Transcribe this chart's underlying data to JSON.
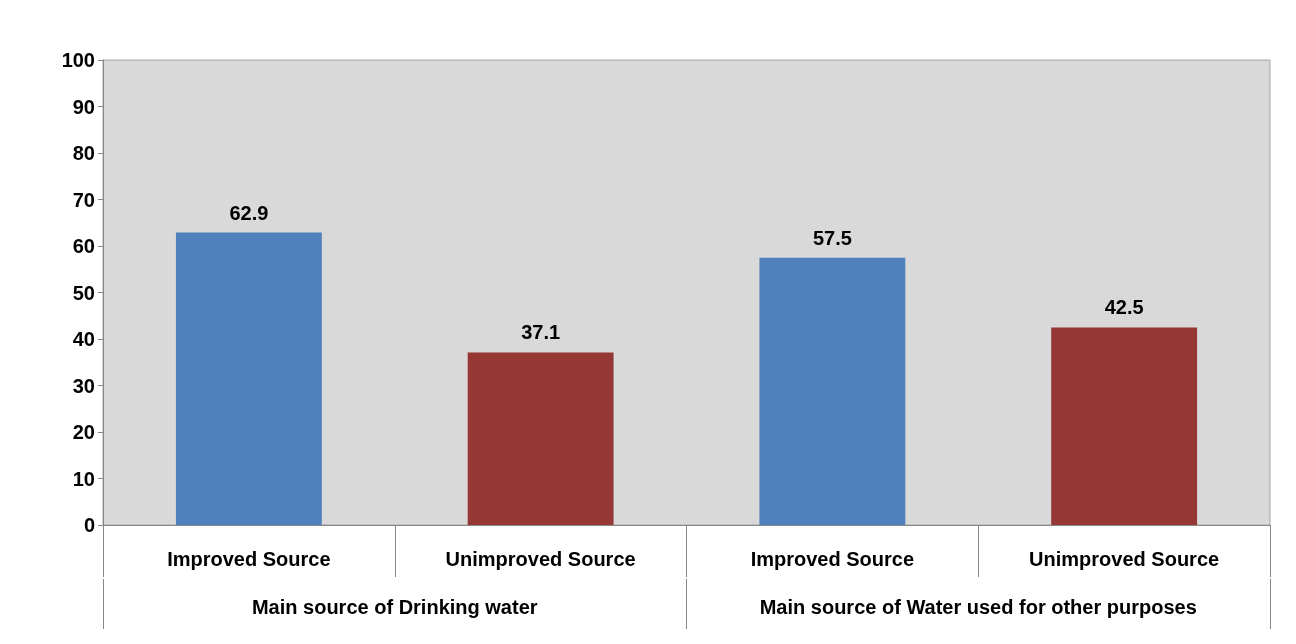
{
  "chart_data": {
    "type": "bar",
    "categories": [
      "Improved Source",
      "Unimproved Source",
      "Improved Source",
      "Unimproved Source"
    ],
    "values": [
      62.9,
      37.1,
      57.5,
      42.5
    ],
    "colors": [
      "#4f81bd",
      "#953735",
      "#4f81bd",
      "#953735"
    ],
    "ylim": [
      0,
      100
    ],
    "yticks": [
      0,
      10,
      20,
      30,
      40,
      50,
      60,
      70,
      80,
      90,
      100
    ],
    "grid": false,
    "data_labels": true,
    "annotations": [
      "Main source of Drinking water",
      "Main source of Water used for other purposes"
    ]
  }
}
